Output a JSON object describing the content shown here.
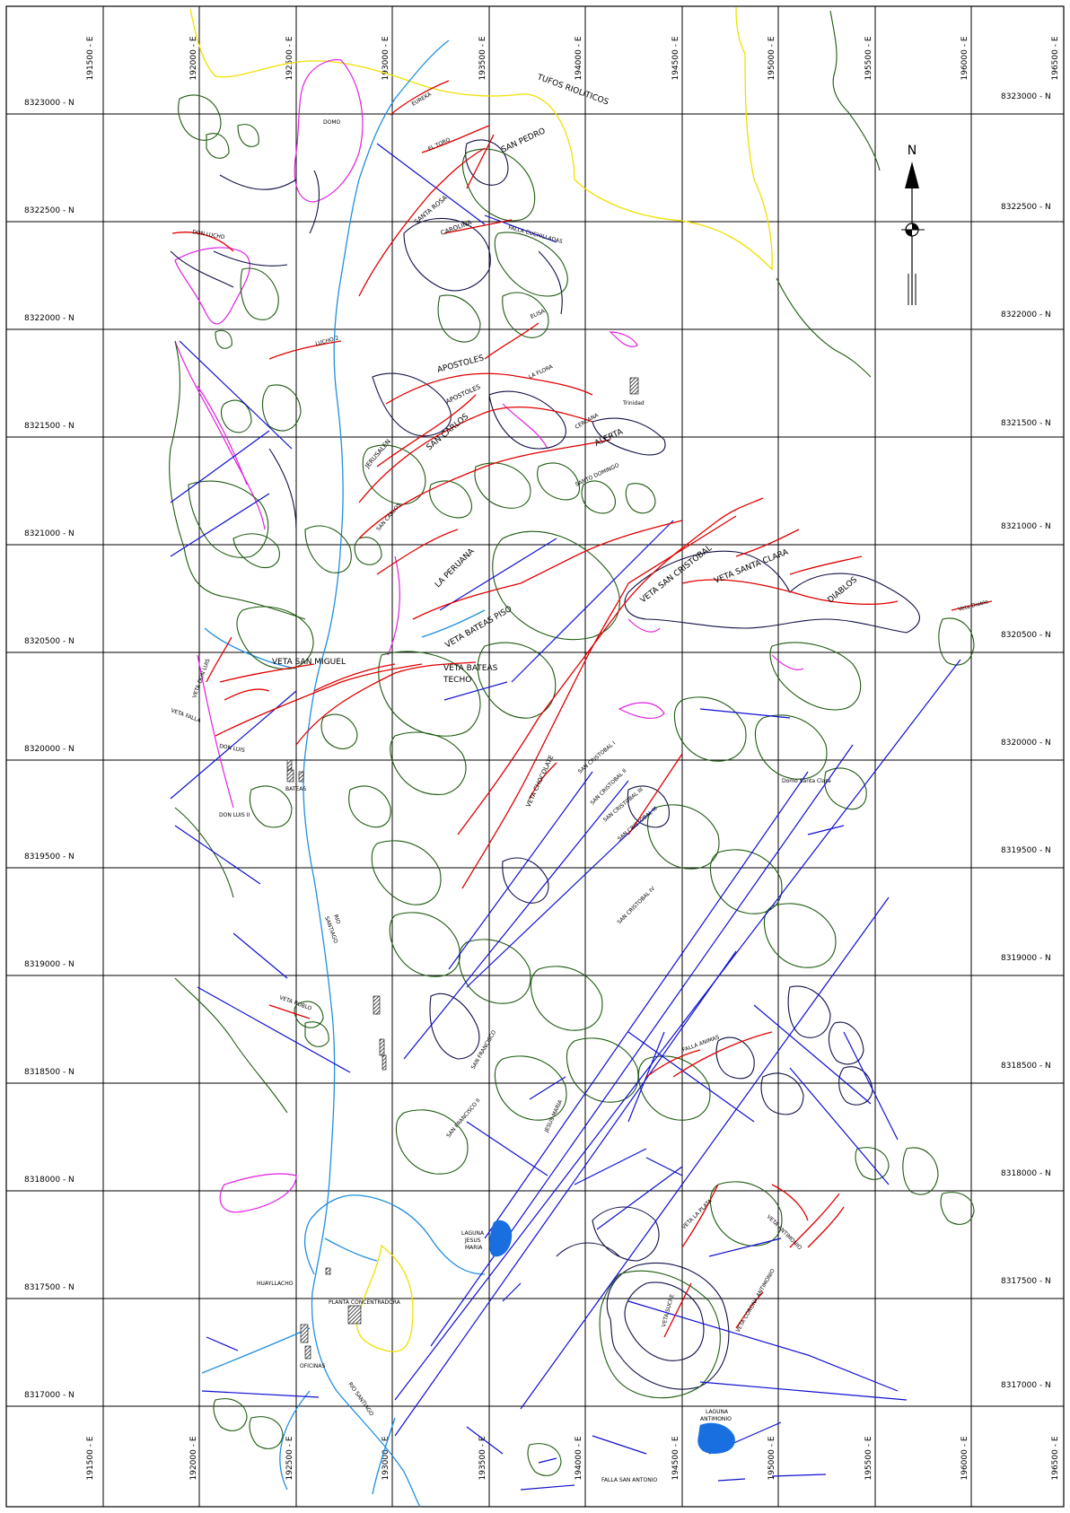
{
  "map": {
    "easting_labels": [
      "191500 - E",
      "192000 - E",
      "192500 - E",
      "193000 - E",
      "193500 - E",
      "194000 - E",
      "194500 - E",
      "195000 - E",
      "195500 - E",
      "196000 - E",
      "196500 - E"
    ],
    "northing_labels": [
      "8323000 - N",
      "8322500 - N",
      "8322000 - N",
      "8321500 - N",
      "8321000 - N",
      "8320500 - N",
      "8320000 - N",
      "8319500 - N",
      "8319000 - N",
      "8318500 - N",
      "8318000 - N",
      "8317500 - N",
      "8317000 - N"
    ],
    "north_arrow_label": "N",
    "colors": {
      "veins": "#e00000",
      "faults": "#1010d0",
      "outcrops": "#1e5a10",
      "river": "#1f8fe0",
      "lake": "#1a6fe0",
      "contact": "#f0e000",
      "dome": "#e020e0",
      "navy": "#101048"
    },
    "labels": {
      "tufos": "TUFOS  RIOLITICOS",
      "domo": "DOMO",
      "eureka": "EUREKA",
      "el_toro": "EL TORO",
      "san_pedro": "SAN PEDRO",
      "santa_rosa": "SANTA ROSA",
      "carolina": "CAROLINA",
      "falla_cuchilladas": "FALLA CUCHILLADAS",
      "don_lucho": "DON LUCHO",
      "lucho": "LUCHO 2",
      "elisa": "ELISA",
      "apostoles": "APOSTOLES",
      "apostoles_2": "APOSTOLES",
      "la_flora": "LA FLORA",
      "trinidad": "Trinidad",
      "jerusalen": "JERUSALEN",
      "san_carlos": "SAN CARLOS",
      "cercana": "CERCANA",
      "alerta": "ALERTA",
      "santo_domingo": "SANTO DOMINGO",
      "san_carlos_2": "SAN CARLOS",
      "la_peruana": "LA PERUANA",
      "veta_san_cristobal": "VETA SAN CRISTOBAL",
      "veta_santa_clara": "VETA SANTA CLARA",
      "diablos": "DIABLOS",
      "veta_diablo": "Veta Diablo",
      "veta_bateas_piso": "VETA BATEAS PISO",
      "veta_san_miguel": "VETA SAN MIGUEL",
      "veta_bateas_techo_1": "VETA BATEAS",
      "veta_bateas_techo_2": "TECHO",
      "veta_don_luis": "VETA DON LUIS",
      "veta_falla": "VETA FALLA",
      "don_luis": "DON LUIS",
      "bateas": "BATEAS",
      "don_luis_ii": "DON LUIS II",
      "veta_chocolate": "VETA CHOCOLATE",
      "san_cristobal_i": "SAN CRISTOBAL I",
      "san_cristobal_ii": "SAN CRISTOBAL II",
      "san_cristobal_iii": "SAN CRISTOBAL III",
      "san_cristobal_iv": "SAN CRISTOBAL IV",
      "domo_santa_clara": "Domo Santa Clara",
      "rio_santiago_1": "RIO",
      "rio_santiago_2": "SANTIAGO",
      "veta_rublo": "VETA RUBLO",
      "san_francisco": "SAN FRANCISCO",
      "san_francisco_ii": "SAN FRANCISCO II",
      "jesus_maria": "JESUS MARIA",
      "falla_animas": "FALLA ANIMAS",
      "laguna_jm_1": "LAGUNA",
      "laguna_jm_2": "JESUS",
      "laguna_jm_3": "MARIA",
      "veta_la_plata": "VETA LA PLATA",
      "veta_antimonio": "VETA ANTIMONIO",
      "huayllacho": "HUAYLLACHO",
      "planta": "PLANTA  CONCENTRADORA",
      "veta_corona_antimonio": "VETA CORONA ANTIMONIO",
      "veta_sucre": "VETA SUCRE",
      "oficinas": "OFICINAS",
      "rio_santiago_3": "RIO  SANTIAGO",
      "laguna_ant_1": "LAGUNA",
      "laguna_ant_2": "ANTIMONIO",
      "falla_san_antonio": "FALLA  SAN ANTONIO"
    }
  }
}
